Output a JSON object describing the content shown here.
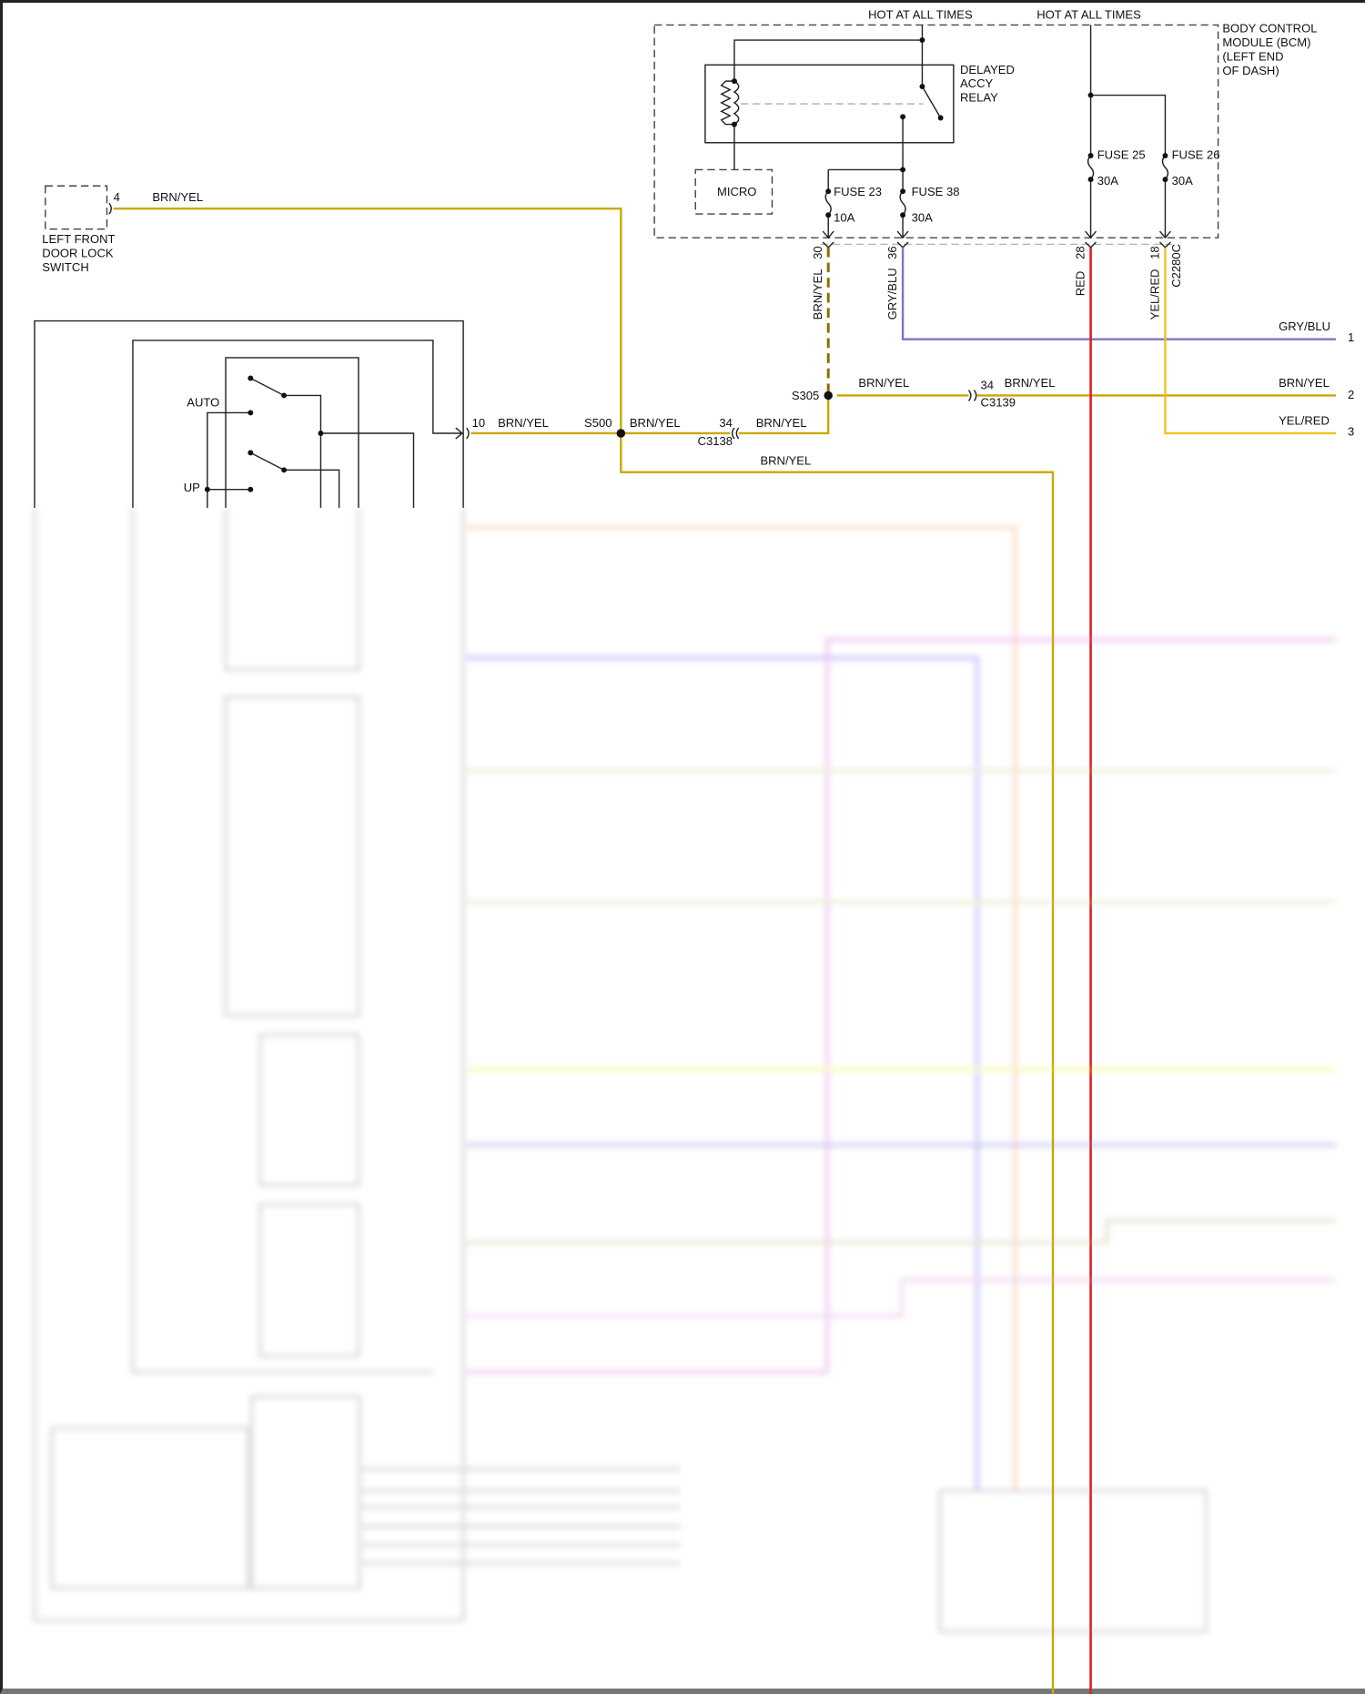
{
  "colors": {
    "brn_yel": "#c8a800",
    "gry_blu": "#7b74c8",
    "red": "#e0201c",
    "yel_red": "#f2c21c",
    "brn_yel_dashed": "#8a7000"
  },
  "power": {
    "hot1": "HOT AT ALL TIMES",
    "hot2": "HOT AT ALL TIMES"
  },
  "bcm": {
    "line1": "BODY CONTROL",
    "line2": "MODULE (BCM)",
    "line3": "(LEFT END",
    "line4": "OF DASH)"
  },
  "relay": {
    "line1": "DELAYED",
    "line2": "ACCY",
    "line3": "RELAY"
  },
  "micro": "MICRO",
  "fuses": [
    {
      "name": "FUSE 23",
      "rating": "10A"
    },
    {
      "name": "FUSE 38",
      "rating": "30A"
    },
    {
      "name": "FUSE 25",
      "rating": "30A"
    },
    {
      "name": "FUSE 26",
      "rating": "30A"
    }
  ],
  "bcm_pins": [
    {
      "pin": "30",
      "wire": "BRN/YEL"
    },
    {
      "pin": "36",
      "wire": "GRY/BLU"
    },
    {
      "pin": "28",
      "wire": "RED"
    },
    {
      "pin": "18",
      "wire": "YEL/RED"
    }
  ],
  "bcm_connector": "C2280C",
  "door_lock_switch": {
    "line1": "LEFT FRONT",
    "line2": "DOOR LOCK",
    "line3": "SWITCH",
    "pin": "4",
    "wire": "BRN/YEL"
  },
  "splices": {
    "s500": "S500",
    "s305": "S305"
  },
  "connectors": {
    "c3138": {
      "name": "C3138",
      "pin": "34"
    },
    "c3139": {
      "name": "C3139",
      "pin": "34"
    },
    "switch_pin": "10"
  },
  "wire_labels": {
    "w10": "BRN/YEL",
    "s500_right": "BRN/YEL",
    "c3138_right": "BRN/YEL",
    "s500_down": "BRN/YEL",
    "s305_right": "BRN/YEL",
    "c3139_right": "BRN/YEL"
  },
  "outputs": [
    {
      "wire": "GRY/BLU",
      "pin": "1"
    },
    {
      "wire": "BRN/YEL",
      "pin": "2"
    },
    {
      "wire": "YEL/RED",
      "pin": "3"
    }
  ],
  "switch_positions": {
    "auto": "AUTO",
    "up": "UP"
  }
}
